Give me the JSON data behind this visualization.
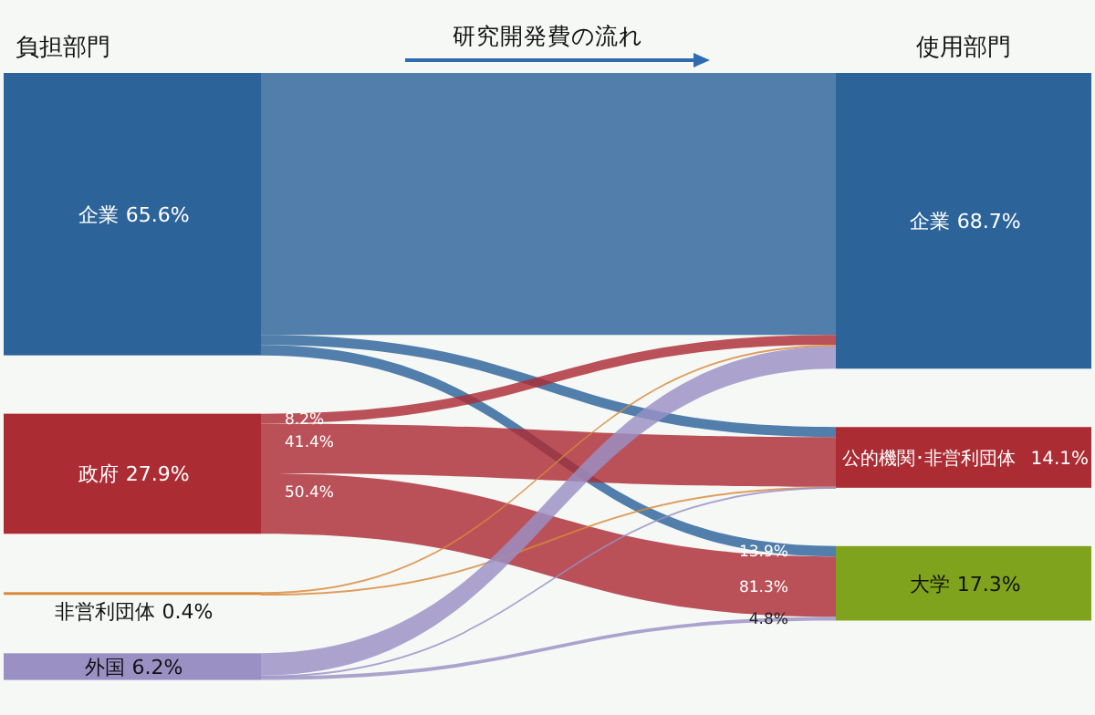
{
  "chart_data": {
    "type": "other",
    "title": "研究開発費の流れ",
    "categories": [
      "企業",
      "政府",
      "非営利団体",
      "外国",
      "企業",
      "公的機関･非営利団体",
      "大学"
    ],
    "values": [
      65.6,
      27.9,
      0.4,
      6.2,
      68.7,
      14.1,
      17.3
    ],
    "value_labels": [
      "65.6%",
      "27.9%",
      "0.4%",
      "6.2%",
      "68.7%",
      "14.1%",
      "17.3%"
    ],
    "colors": [
      "#2c6399",
      "#ac2c34",
      "#d9893b",
      "#9a90c4",
      "#2c6399",
      "#ac2c34",
      "#7fa31c"
    ],
    "cells": [
      [
        null,
        null,
        null
      ],
      [
        null,
        null,
        null
      ],
      [
        null,
        null,
        null
      ],
      [
        null,
        null,
        null
      ]
    ],
    "annotations": [
      "負担部門",
      "使用部門",
      {
        "text": "8.2%",
        "x": "政府",
        "y": "企業"
      },
      {
        "text": "41.4%",
        "x": "政府",
        "y": "公的機関･非営利団体"
      },
      {
        "text": "50.4%",
        "x": "政府",
        "y": "大学"
      },
      {
        "text": "13.9%",
        "x": "大学",
        "y": "企業"
      },
      {
        "text": "81.3%",
        "x": "大学",
        "y": "政府"
      },
      {
        "text": "4.8%",
        "x": "大学",
        "y": "外国"
      }
    ]
  }
}
